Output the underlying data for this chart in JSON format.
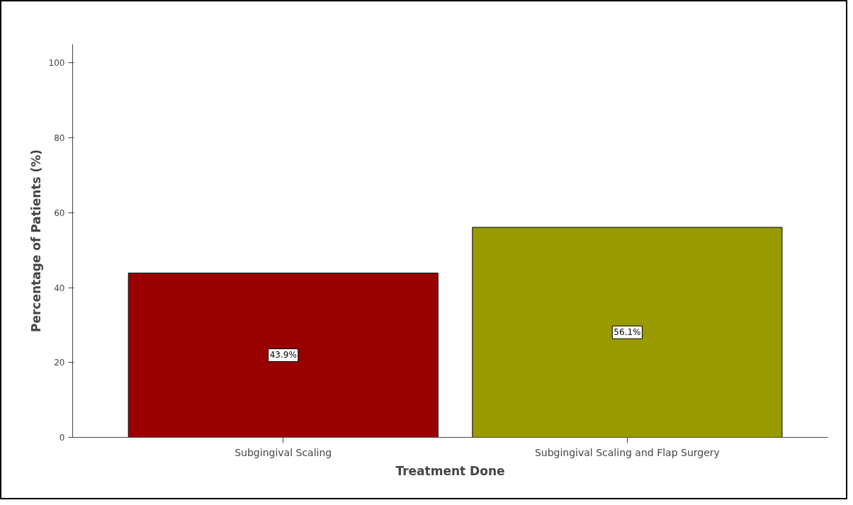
{
  "chart_data": {
    "type": "bar",
    "xlabel": "Treatment Done",
    "ylabel": "Percentage of Patients (%)",
    "categories": [
      "Subgingival Scaling",
      "Subgingival Scaling and Flap Surgery"
    ],
    "values": [
      43.9,
      56.1
    ],
    "colors": [
      "#990000",
      "#999900"
    ],
    "value_labels": [
      "43.9%",
      "56.1%"
    ],
    "ylim": [
      0,
      105
    ],
    "yticks": [
      0,
      20,
      40,
      60,
      80,
      100
    ],
    "grid": false
  }
}
